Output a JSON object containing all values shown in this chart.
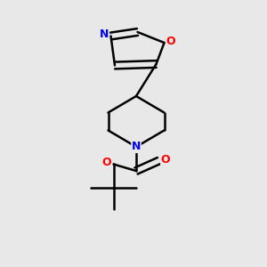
{
  "background_color": "#e8e8e8",
  "bond_color": "#000000",
  "N_color": "#0000ff",
  "O_color": "#ff0000",
  "line_width": 1.8,
  "figsize": [
    3.0,
    3.0
  ],
  "dpi": 100,
  "xlim": [
    0.0,
    1.0
  ],
  "ylim": [
    0.0,
    1.0
  ]
}
